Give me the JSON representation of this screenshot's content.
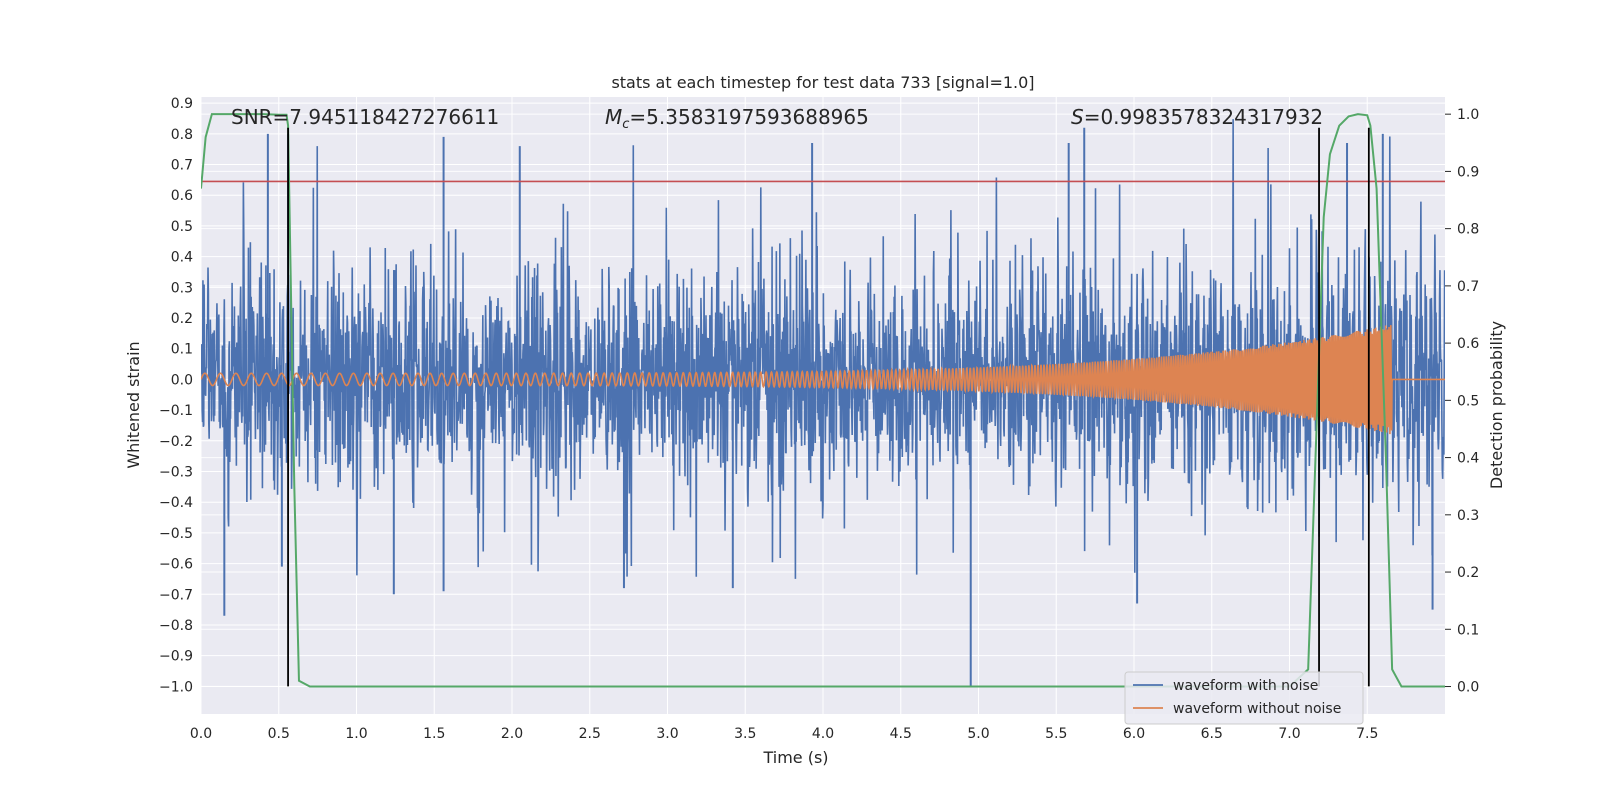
{
  "chart_data": {
    "type": "line",
    "title": "stats at each timestep for test data 733 [signal=1.0]",
    "xlabel": "Time (s)",
    "ylabel": "Whitened strain",
    "y2label": "Detection probability",
    "xlim": [
      0.0,
      8.0
    ],
    "ylim": [
      -1.09,
      0.92
    ],
    "y2lim": [
      -0.048,
      1.03
    ],
    "xticks": [
      "0.0",
      "0.5",
      "1.0",
      "1.5",
      "2.0",
      "2.5",
      "3.0",
      "3.5",
      "4.0",
      "4.5",
      "5.0",
      "5.5",
      "6.0",
      "6.5",
      "7.0",
      "7.5"
    ],
    "yticks": [
      "0.9",
      "0.8",
      "0.7",
      "0.6",
      "0.5",
      "0.4",
      "0.3",
      "0.2",
      "0.1",
      "0.0",
      "−0.1",
      "−0.2",
      "−0.3",
      "−0.4",
      "−0.5",
      "−0.6",
      "−0.7",
      "−0.8",
      "−0.9",
      "−1.0"
    ],
    "y2ticks": [
      "1.0",
      "0.9",
      "0.8",
      "0.7",
      "0.6",
      "0.5",
      "0.4",
      "0.3",
      "0.2",
      "0.1",
      "0.0"
    ],
    "annotations": {
      "snr": "SNR=7.945118427276611",
      "mc": "=5.3583197593688965",
      "mc_symbol": "M",
      "mc_sub": "c",
      "s": "=0.9983578324317932",
      "s_symbol": "S"
    },
    "legend": {
      "position": "lower-right",
      "entries": [
        "waveform with noise",
        "waveform without noise"
      ]
    },
    "colors": {
      "noise": "#4c72b0",
      "clean": "#dd8452",
      "prob": "#55a868",
      "threshold": "#c44e52",
      "marker": "#000000",
      "background": "#eaeaf2",
      "grid": "#ffffff"
    },
    "series": [
      {
        "name": "waveform with noise",
        "description": "whitened strain with noise, amplitude roughly within [-0.6, 0.8], spikes up to 0.82 and down to -1.0 near t=4.95"
      },
      {
        "name": "waveform without noise",
        "description": "chirp signal, amplitude grows from ~0.02 at t=0 to ~0.18 at t=7.65, then ends"
      },
      {
        "name": "detection probability",
        "x": [
          0.0,
          0.03,
          0.07,
          0.12,
          0.2,
          0.3,
          0.4,
          0.5,
          0.55,
          0.56,
          0.6,
          0.63,
          0.7,
          1.0,
          2.0,
          3.0,
          4.0,
          5.0,
          6.0,
          7.0,
          7.12,
          7.18,
          7.22,
          7.26,
          7.32,
          7.38,
          7.44,
          7.5,
          7.52,
          7.56,
          7.62,
          7.66,
          7.72,
          7.8,
          8.0
        ],
        "values": [
          0.87,
          0.96,
          1.0,
          1.0,
          1.0,
          1.0,
          1.0,
          0.999,
          0.999,
          0.98,
          0.35,
          0.01,
          0.0,
          0.0,
          0.0,
          0.0,
          0.0,
          0.0,
          0.0,
          0.0,
          0.03,
          0.5,
          0.82,
          0.93,
          0.98,
          0.996,
          1.0,
          0.998,
          0.98,
          0.87,
          0.4,
          0.03,
          0.0,
          0.0,
          0.0
        ]
      }
    ],
    "threshold": 0.645,
    "marker_lines": [
      {
        "x": 0.56,
        "y_from": -1.0,
        "y_to": 0.82
      },
      {
        "x": 7.19,
        "y_from": -1.0,
        "y_to": 0.82
      },
      {
        "x": 7.51,
        "y_from": -1.0,
        "y_to": 0.82
      }
    ],
    "noise_spikes": [
      {
        "t": 0.43,
        "v": 0.8
      },
      {
        "t": 0.56,
        "v": 0.8
      },
      {
        "t": 1.56,
        "v": 0.79
      },
      {
        "t": 2.05,
        "v": 0.76
      },
      {
        "t": 3.93,
        "v": 0.77
      },
      {
        "t": 5.68,
        "v": 0.82
      },
      {
        "t": 5.58,
        "v": 0.77
      },
      {
        "t": 7.37,
        "v": 0.77
      },
      {
        "t": 7.6,
        "v": 0.8
      },
      {
        "t": 4.95,
        "v": -1.0
      },
      {
        "t": 0.15,
        "v": -0.77
      },
      {
        "t": 7.92,
        "v": -0.75
      },
      {
        "t": 1.24,
        "v": -0.7
      },
      {
        "t": 1.56,
        "v": -0.69
      },
      {
        "t": 2.72,
        "v": -0.68
      },
      {
        "t": 3.42,
        "v": -0.68
      },
      {
        "t": 6.02,
        "v": -0.73
      },
      {
        "t": 0.52,
        "v": -0.61
      }
    ]
  }
}
